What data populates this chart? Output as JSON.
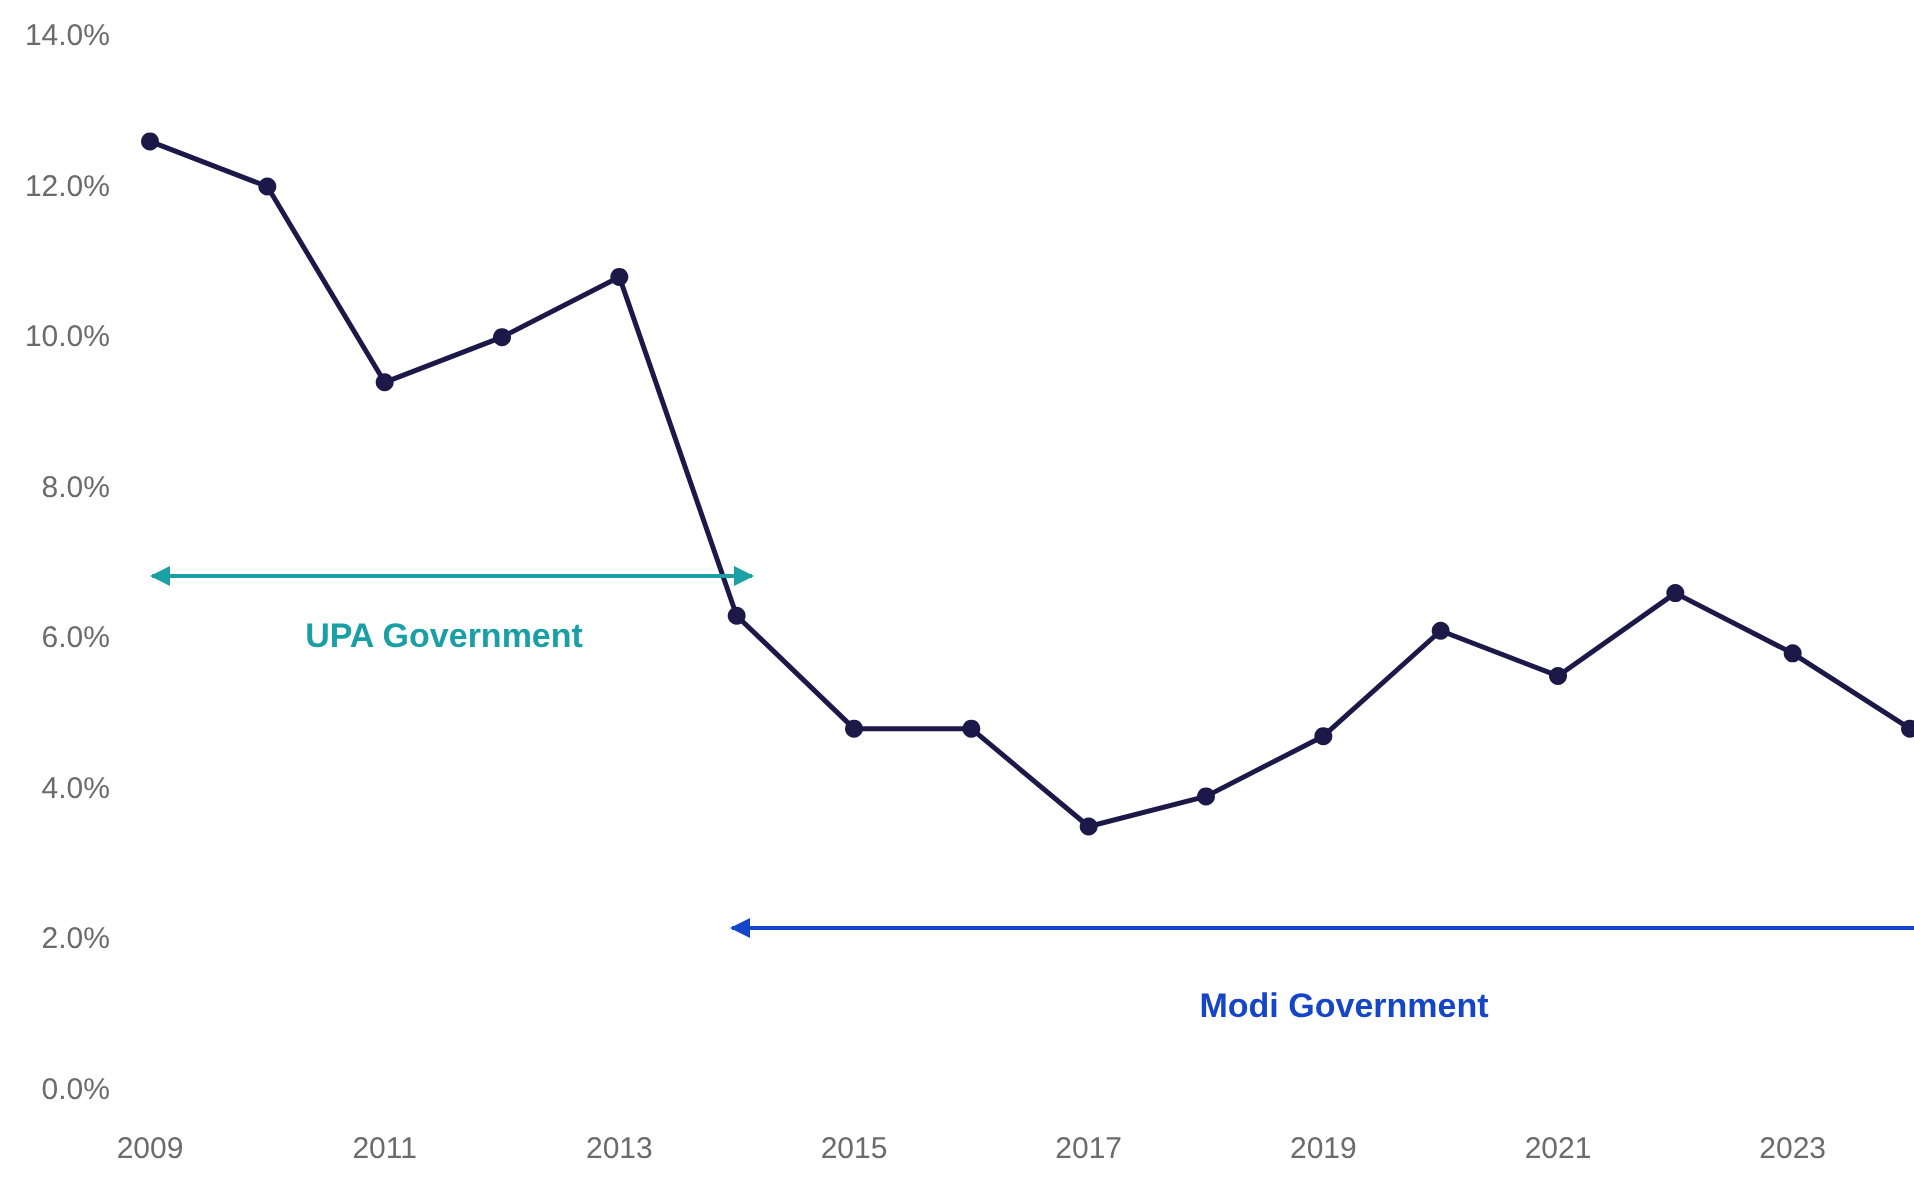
{
  "chart_data": {
    "type": "line",
    "x": [
      2009,
      2010,
      2011,
      2012,
      2013,
      2014,
      2015,
      2016,
      2017,
      2018,
      2019,
      2020,
      2021,
      2022,
      2023,
      2024
    ],
    "series": [
      {
        "color": "#1c1848",
        "values": [
          12.6,
          12.0,
          9.4,
          10.0,
          10.8,
          6.3,
          4.8,
          4.8,
          3.5,
          3.9,
          4.7,
          6.1,
          5.5,
          6.6,
          5.8,
          4.8
        ]
      }
    ],
    "xlim": [
      2009,
      2024
    ],
    "xticks": [
      2009,
      2011,
      2013,
      2015,
      2017,
      2019,
      2021,
      2023
    ],
    "ylim": [
      0,
      14
    ],
    "yticks": [
      {
        "value": 0,
        "label": "0.0%"
      },
      {
        "value": 2,
        "label": "2.0%"
      },
      {
        "value": 4,
        "label": "4.0%"
      },
      {
        "value": 6,
        "label": "6.0%"
      },
      {
        "value": 8,
        "label": "8.0%"
      },
      {
        "value": 10,
        "label": "10.0%"
      },
      {
        "value": 12,
        "label": "12.0%"
      },
      {
        "value": 14,
        "label": "14.0%"
      }
    ],
    "annotations": [
      "UPA Government",
      "Modi Government"
    ],
    "grid": false,
    "marker": "circle",
    "line_style": "solid"
  }
}
